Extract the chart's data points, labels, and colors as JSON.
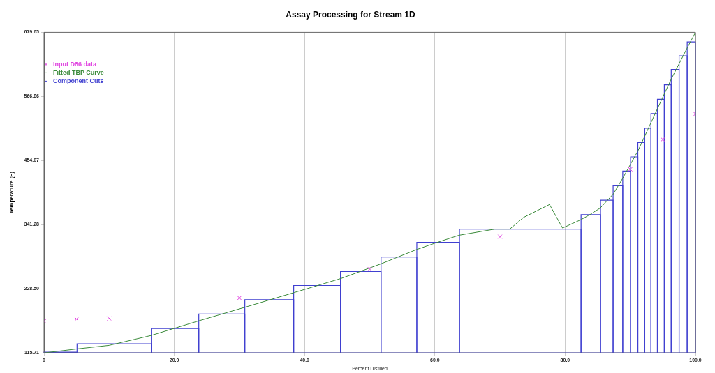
{
  "chart_data": {
    "type": "scatter",
    "title": "Assay Processing for Stream 1D",
    "xlabel": "Percent Distilled",
    "ylabel": "Temperature (F)",
    "xlim": [
      0,
      100
    ],
    "xticks": [
      0,
      {
        "value": 20,
        "label": "20.0"
      },
      {
        "value": 40,
        "label": "40.0"
      },
      {
        "value": 60,
        "label": "60.0"
      },
      {
        "value": 80,
        "label": "80.0"
      },
      {
        "value": 100,
        "label": "100.0"
      }
    ],
    "ylim": [
      115.71,
      679.65
    ],
    "yticks": [
      115.71,
      {
        "value": 228.5,
        "label": "228.50"
      },
      341.28,
      454.07,
      566.86,
      679.65
    ],
    "grid": "x",
    "legend": "top left",
    "series": [
      {
        "name": "Input D86 data",
        "color": "#e040e0",
        "marker": "cross",
        "x": [
          0,
          5,
          10,
          30,
          50,
          70,
          90,
          95,
          100
        ],
        "values": [
          171.5,
          175.2,
          176.4,
          212.4,
          263.2,
          320.2,
          438.8,
          491.2,
          536.1
        ]
      },
      {
        "name": "Fitted TBP Curve",
        "type": "line",
        "color": "#3a8a3a",
        "marker": "none",
        "x": [
          0,
          5.1,
          10,
          16.4,
          23.8,
          30.8,
          38.4,
          45.6,
          51.7,
          57.2,
          60.2,
          63.7,
          69.2,
          71.5,
          73.6,
          77.6,
          79.6,
          82.4,
          83.8,
          85.4,
          87.4,
          88.8,
          90,
          91.2,
          92.2,
          93.2,
          94.2,
          95.2,
          96.3,
          97.5,
          98.7,
          100
        ],
        "values": [
          115.71,
          122.8,
          129,
          146.3,
          172.3,
          195.9,
          221.9,
          246.7,
          272.3,
          297.6,
          309.5,
          322.7,
          333.5,
          333.5,
          354,
          376.8,
          335.4,
          350,
          359,
          370.7,
          395.5,
          422.2,
          447,
          471.8,
          496.6,
          521.4,
          546.1,
          570.9,
          597.8,
          624.6,
          651.5,
          679.6
        ]
      },
      {
        "name": "Component Cuts",
        "type": "histogram",
        "color": "#4040d0",
        "bins": [
          0,
          5.07,
          16.47,
          23.76,
          30.83,
          38.33,
          45.51,
          51.74,
          57.23,
          63.78,
          82.44,
          85.43,
          87.36,
          88.84,
          90.04,
          91.16,
          92.22,
          93.17,
          94.16,
          95.22,
          96.28,
          97.49,
          98.73,
          100
        ],
        "values": [
          117,
          131.8,
          158.7,
          184.3,
          209.5,
          234.3,
          259.1,
          284.3,
          310.3,
          333.5,
          359,
          384.3,
          409.8,
          435.5,
          460.6,
          485.9,
          511.1,
          536.7,
          561.9,
          587.5,
          614.3,
          638.3,
          662.7
        ]
      }
    ]
  }
}
